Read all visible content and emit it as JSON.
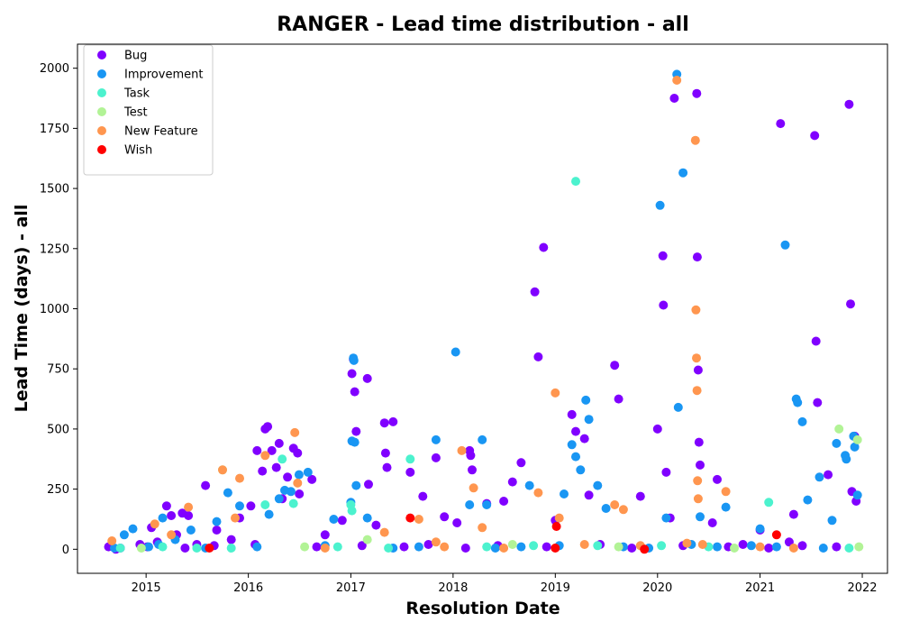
{
  "chart_data": {
    "type": "scatter",
    "title": "RANGER - Lead time distribution - all",
    "xlabel": "Resolution Date",
    "ylabel": "Lead Time (days) - all",
    "xlim": [
      "2014-05-01",
      "2022-04-01"
    ],
    "ylim": [
      -100,
      2100
    ],
    "x_ticks": [
      "2015",
      "2016",
      "2017",
      "2018",
      "2019",
      "2020",
      "2021",
      "2022"
    ],
    "y_ticks": [
      "0",
      "250",
      "500",
      "750",
      "1000",
      "1250",
      "1500",
      "1750",
      "2000"
    ],
    "grid": false,
    "legend_position": "top-left",
    "series": [
      {
        "name": "Bug",
        "color": "#8000ff",
        "points": [
          [
            "2014-08-20",
            10
          ],
          [
            "2014-10-01",
            5
          ],
          [
            "2014-12-10",
            20
          ],
          [
            "2015-01-20",
            90
          ],
          [
            "2015-02-10",
            30
          ],
          [
            "2015-03-15",
            180
          ],
          [
            "2015-04-01",
            140
          ],
          [
            "2015-04-20",
            60
          ],
          [
            "2015-05-10",
            150
          ],
          [
            "2015-06-01",
            140
          ],
          [
            "2015-07-01",
            20
          ],
          [
            "2015-08-01",
            265
          ],
          [
            "2015-09-10",
            80
          ],
          [
            "2015-11-01",
            40
          ],
          [
            "2015-12-01",
            130
          ],
          [
            "2016-01-10",
            180
          ],
          [
            "2016-02-01",
            410
          ],
          [
            "2016-02-20",
            325
          ],
          [
            "2016-03-01",
            500
          ],
          [
            "2016-03-10",
            510
          ],
          [
            "2016-03-25",
            410
          ],
          [
            "2016-04-10",
            340
          ],
          [
            "2016-04-20",
            440
          ],
          [
            "2016-05-01",
            210
          ],
          [
            "2016-05-20",
            300
          ],
          [
            "2016-06-10",
            420
          ],
          [
            "2016-06-25",
            400
          ],
          [
            "2016-07-01",
            230
          ],
          [
            "2016-08-15",
            290
          ],
          [
            "2016-10-01",
            60
          ],
          [
            "2016-12-01",
            120
          ],
          [
            "2017-01-05",
            730
          ],
          [
            "2017-01-10",
            790
          ],
          [
            "2017-01-15",
            655
          ],
          [
            "2017-01-20",
            490
          ],
          [
            "2017-03-01",
            710
          ],
          [
            "2017-03-05",
            270
          ],
          [
            "2017-04-01",
            100
          ],
          [
            "2017-05-01",
            525
          ],
          [
            "2017-05-05",
            400
          ],
          [
            "2017-05-10",
            340
          ],
          [
            "2017-06-01",
            530
          ],
          [
            "2017-08-01",
            320
          ],
          [
            "2017-09-15",
            220
          ],
          [
            "2017-11-01",
            380
          ],
          [
            "2017-12-01",
            135
          ],
          [
            "2018-01-15",
            110
          ],
          [
            "2018-03-01",
            410
          ],
          [
            "2018-03-05",
            390
          ],
          [
            "2018-03-10",
            330
          ],
          [
            "2018-05-01",
            190
          ],
          [
            "2018-07-01",
            200
          ],
          [
            "2018-08-01",
            280
          ],
          [
            "2018-09-01",
            360
          ],
          [
            "2018-10-20",
            1070
          ],
          [
            "2018-11-01",
            800
          ],
          [
            "2018-11-20",
            1255
          ],
          [
            "2019-01-01",
            120
          ],
          [
            "2019-03-01",
            560
          ],
          [
            "2019-03-15",
            490
          ],
          [
            "2019-04-15",
            460
          ],
          [
            "2019-05-01",
            225
          ],
          [
            "2019-08-01",
            765
          ],
          [
            "2019-08-15",
            625
          ],
          [
            "2019-11-01",
            220
          ],
          [
            "2020-01-01",
            500
          ],
          [
            "2020-01-20",
            1220
          ],
          [
            "2020-01-22",
            1015
          ],
          [
            "2020-02-01",
            320
          ],
          [
            "2020-02-15",
            130
          ],
          [
            "2020-03-01",
            1875
          ],
          [
            "2020-05-20",
            1895
          ],
          [
            "2020-05-22",
            1215
          ],
          [
            "2020-05-25",
            745
          ],
          [
            "2020-05-28",
            445
          ],
          [
            "2020-06-01",
            350
          ],
          [
            "2020-07-15",
            110
          ],
          [
            "2020-08-01",
            290
          ],
          [
            "2021-01-01",
            80
          ],
          [
            "2021-03-15",
            1770
          ],
          [
            "2021-04-15",
            30
          ],
          [
            "2021-05-01",
            145
          ],
          [
            "2021-07-15",
            1720
          ],
          [
            "2021-07-20",
            865
          ],
          [
            "2021-07-25",
            610
          ],
          [
            "2021-09-01",
            310
          ],
          [
            "2021-11-15",
            1850
          ],
          [
            "2021-11-20",
            1020
          ],
          [
            "2021-11-25",
            240
          ],
          [
            "2021-12-05",
            470
          ],
          [
            "2021-12-10",
            200
          ],
          [
            "2014-09-15",
            0
          ],
          [
            "2015-01-05",
            10
          ],
          [
            "2015-05-20",
            5
          ],
          [
            "2015-09-01",
            15
          ],
          [
            "2016-01-25",
            20
          ],
          [
            "2016-09-01",
            10
          ],
          [
            "2017-02-10",
            15
          ],
          [
            "2017-07-10",
            10
          ],
          [
            "2017-10-05",
            20
          ],
          [
            "2018-02-15",
            5
          ],
          [
            "2018-06-10",
            15
          ],
          [
            "2018-12-01",
            10
          ],
          [
            "2019-06-10",
            20
          ],
          [
            "2019-10-01",
            5
          ],
          [
            "2020-04-01",
            15
          ],
          [
            "2020-09-10",
            10
          ],
          [
            "2020-11-01",
            20
          ],
          [
            "2021-02-01",
            5
          ],
          [
            "2021-06-01",
            15
          ],
          [
            "2021-10-01",
            10
          ]
        ]
      },
      {
        "name": "Improvement",
        "color": "#1996f3",
        "points": [
          [
            "2014-10-15",
            60
          ],
          [
            "2014-11-15",
            85
          ],
          [
            "2015-02-15",
            20
          ],
          [
            "2015-03-01",
            130
          ],
          [
            "2015-04-15",
            40
          ],
          [
            "2015-06-10",
            80
          ],
          [
            "2015-09-10",
            115
          ],
          [
            "2015-10-20",
            235
          ],
          [
            "2015-12-01",
            180
          ],
          [
            "2016-03-15",
            145
          ],
          [
            "2016-04-20",
            210
          ],
          [
            "2016-05-10",
            245
          ],
          [
            "2016-06-01",
            240
          ],
          [
            "2016-06-30",
            310
          ],
          [
            "2016-08-01",
            320
          ],
          [
            "2016-11-01",
            125
          ],
          [
            "2017-01-01",
            195
          ],
          [
            "2017-01-05",
            450
          ],
          [
            "2017-01-10",
            795
          ],
          [
            "2017-01-12",
            785
          ],
          [
            "2017-01-15",
            445
          ],
          [
            "2017-01-20",
            265
          ],
          [
            "2017-03-01",
            130
          ],
          [
            "2017-11-01",
            455
          ],
          [
            "2018-01-10",
            820
          ],
          [
            "2018-03-01",
            185
          ],
          [
            "2018-04-15",
            455
          ],
          [
            "2018-05-01",
            185
          ],
          [
            "2018-10-01",
            265
          ],
          [
            "2019-02-01",
            230
          ],
          [
            "2019-03-01",
            435
          ],
          [
            "2019-03-15",
            385
          ],
          [
            "2019-04-01",
            330
          ],
          [
            "2019-04-20",
            620
          ],
          [
            "2019-05-01",
            540
          ],
          [
            "2019-06-01",
            265
          ],
          [
            "2019-07-01",
            170
          ],
          [
            "2020-01-10",
            1430
          ],
          [
            "2020-02-01",
            130
          ],
          [
            "2020-03-10",
            1975
          ],
          [
            "2020-03-15",
            590
          ],
          [
            "2020-04-01",
            1565
          ],
          [
            "2020-06-01",
            135
          ],
          [
            "2020-09-01",
            175
          ],
          [
            "2021-01-01",
            85
          ],
          [
            "2021-04-01",
            1265
          ],
          [
            "2021-05-10",
            625
          ],
          [
            "2021-05-15",
            610
          ],
          [
            "2021-06-01",
            530
          ],
          [
            "2021-06-20",
            205
          ],
          [
            "2021-08-01",
            300
          ],
          [
            "2021-09-15",
            120
          ],
          [
            "2021-10-01",
            440
          ],
          [
            "2021-11-01",
            390
          ],
          [
            "2021-11-05",
            375
          ],
          [
            "2021-12-01",
            470
          ],
          [
            "2021-12-05",
            425
          ],
          [
            "2021-12-15",
            225
          ],
          [
            "2014-09-10",
            5
          ],
          [
            "2015-01-10",
            10
          ],
          [
            "2015-08-01",
            5
          ],
          [
            "2016-02-01",
            10
          ],
          [
            "2016-10-01",
            15
          ],
          [
            "2017-06-01",
            5
          ],
          [
            "2017-09-01",
            10
          ],
          [
            "2018-06-01",
            5
          ],
          [
            "2018-09-01",
            10
          ],
          [
            "2019-01-15",
            15
          ],
          [
            "2019-09-01",
            10
          ],
          [
            "2019-12-01",
            5
          ],
          [
            "2020-05-01",
            20
          ],
          [
            "2020-08-01",
            10
          ],
          [
            "2020-12-01",
            15
          ],
          [
            "2021-03-01",
            10
          ],
          [
            "2021-08-15",
            5
          ]
        ]
      },
      {
        "name": "Task",
        "color": "#4cf2ce",
        "points": [
          [
            "2014-10-01",
            5
          ],
          [
            "2015-03-01",
            10
          ],
          [
            "2015-07-01",
            5
          ],
          [
            "2016-03-01",
            185
          ],
          [
            "2016-05-01",
            375
          ],
          [
            "2016-06-10",
            190
          ],
          [
            "2017-01-01",
            185
          ],
          [
            "2017-01-05",
            160
          ],
          [
            "2017-08-01",
            375
          ],
          [
            "2019-03-15",
            1530
          ],
          [
            "2020-01-15",
            15
          ],
          [
            "2021-02-01",
            195
          ],
          [
            "2021-11-15",
            5
          ],
          [
            "2018-05-01",
            10
          ],
          [
            "2019-06-01",
            15
          ],
          [
            "2020-07-01",
            10
          ],
          [
            "2015-11-01",
            5
          ],
          [
            "2016-11-15",
            10
          ],
          [
            "2017-05-15",
            5
          ],
          [
            "2018-10-15",
            15
          ]
        ]
      },
      {
        "name": "Test",
        "color": "#b2f396",
        "points": [
          [
            "2015-10-01",
            330
          ],
          [
            "2017-03-01",
            40
          ],
          [
            "2018-08-01",
            20
          ],
          [
            "2019-08-15",
            10
          ],
          [
            "2021-10-10",
            500
          ],
          [
            "2021-12-15",
            455
          ],
          [
            "2021-12-20",
            10
          ],
          [
            "2014-12-15",
            5
          ],
          [
            "2016-07-20",
            10
          ],
          [
            "2020-10-01",
            5
          ]
        ]
      },
      {
        "name": "New Feature",
        "color": "#ff964f",
        "points": [
          [
            "2014-09-01",
            35
          ],
          [
            "2015-02-01",
            105
          ],
          [
            "2015-04-01",
            60
          ],
          [
            "2015-06-01",
            175
          ],
          [
            "2015-10-01",
            330
          ],
          [
            "2015-11-15",
            130
          ],
          [
            "2015-12-01",
            295
          ],
          [
            "2016-03-01",
            390
          ],
          [
            "2016-06-15",
            485
          ],
          [
            "2016-06-25",
            275
          ],
          [
            "2017-05-01",
            70
          ],
          [
            "2017-09-01",
            125
          ],
          [
            "2017-11-01",
            30
          ],
          [
            "2018-02-01",
            410
          ],
          [
            "2018-03-15",
            255
          ],
          [
            "2018-04-15",
            90
          ],
          [
            "2018-11-01",
            235
          ],
          [
            "2019-01-01",
            650
          ],
          [
            "2019-01-15",
            130
          ],
          [
            "2019-04-15",
            20
          ],
          [
            "2019-08-01",
            185
          ],
          [
            "2019-09-01",
            165
          ],
          [
            "2020-04-15",
            25
          ],
          [
            "2020-03-10",
            1950
          ],
          [
            "2020-05-15",
            1700
          ],
          [
            "2020-05-17",
            995
          ],
          [
            "2020-05-19",
            795
          ],
          [
            "2020-05-21",
            660
          ],
          [
            "2020-05-23",
            285
          ],
          [
            "2020-05-25",
            210
          ],
          [
            "2020-06-10",
            20
          ],
          [
            "2020-09-01",
            240
          ],
          [
            "2021-01-01",
            10
          ],
          [
            "2016-10-01",
            5
          ],
          [
            "2017-12-01",
            10
          ],
          [
            "2018-07-01",
            5
          ],
          [
            "2019-11-01",
            15
          ],
          [
            "2021-05-01",
            5
          ]
        ]
      },
      {
        "name": "Wish",
        "color": "#ff0000",
        "points": [
          [
            "2015-08-15",
            5
          ],
          [
            "2017-08-01",
            130
          ],
          [
            "2019-01-01",
            5
          ],
          [
            "2019-01-05",
            95
          ],
          [
            "2019-11-15",
            0
          ],
          [
            "2021-03-01",
            60
          ]
        ]
      }
    ]
  }
}
